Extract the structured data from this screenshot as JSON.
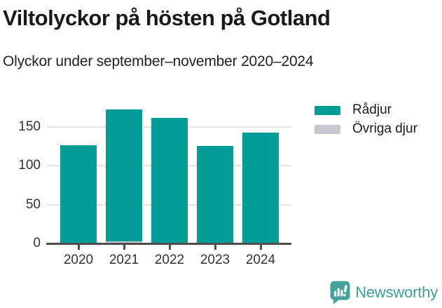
{
  "header": {
    "title": "Viltolyckor på hösten på Gotland",
    "subtitle": "Olyckor under september–november 2020–2024"
  },
  "chart_data": {
    "type": "bar",
    "stacked": true,
    "title": "Viltolyckor på hösten på Gotland",
    "subtitle": "Olyckor under september–november 2020–2024",
    "categories": [
      "2020",
      "2021",
      "2022",
      "2023",
      "2024"
    ],
    "series": [
      {
        "name": "Rådjur",
        "color": "#009c95",
        "values": [
          127,
          170,
          161,
          125,
          142
        ]
      },
      {
        "name": "Övriga djur",
        "color": "#c9c8d2",
        "values": [
          0,
          3,
          1,
          1,
          1
        ]
      }
    ],
    "stack_totals": [
      127,
      173,
      162,
      126,
      143
    ],
    "xlabel": "",
    "ylabel": "",
    "yticks": [
      0,
      50,
      100,
      150
    ],
    "ylim": [
      0,
      180
    ],
    "grid": true,
    "legend_position": "right"
  },
  "footer": {
    "brand": "Newsworthy"
  },
  "colors": {
    "bar_primary": "#009c95",
    "bar_secondary": "#c9c8d2",
    "axis_line": "#4d4d4d",
    "gridline": "#e4e4e4",
    "tick_text": "#333333",
    "title_text": "#1a1a1a",
    "brand_teal": "#3f9e98"
  }
}
